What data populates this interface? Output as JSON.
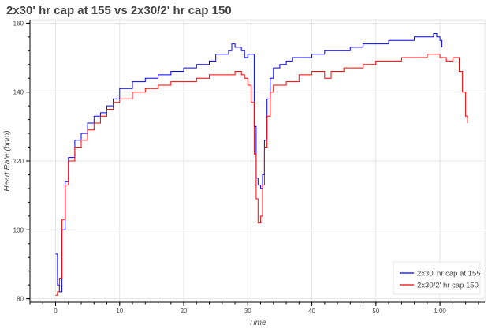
{
  "chart_data": {
    "type": "line",
    "title": "2x30' hr cap at 155 vs 2x30/2' hr cap 150",
    "xlabel": "Time",
    "ylabel": "Heart Rate (bpm)",
    "xlim": [
      -4,
      67
    ],
    "ylim": [
      79,
      161
    ],
    "x_ticks": [
      0,
      10,
      20,
      30,
      40,
      50,
      60
    ],
    "x_tick_labels": [
      "0",
      "10",
      "20",
      "30",
      "40",
      "50",
      "1:00"
    ],
    "y_ticks": [
      80,
      100,
      120,
      140,
      160
    ],
    "y_tick_labels": [
      "80",
      "100",
      "120",
      "140",
      "160"
    ],
    "grid": true,
    "legend_position": "bottom-right",
    "series": [
      {
        "name": "2x30' hr cap at 155",
        "color": "#0000ff",
        "points": [
          [
            0,
            93
          ],
          [
            0.3,
            84
          ],
          [
            0.6,
            82
          ],
          [
            1.0,
            100
          ],
          [
            1.5,
            114
          ],
          [
            2.0,
            121
          ],
          [
            3,
            126
          ],
          [
            4,
            128
          ],
          [
            5,
            131
          ],
          [
            6,
            133
          ],
          [
            7,
            134
          ],
          [
            8,
            136
          ],
          [
            9,
            138
          ],
          [
            10,
            141
          ],
          [
            12,
            143
          ],
          [
            14,
            144
          ],
          [
            16,
            145
          ],
          [
            18,
            146
          ],
          [
            20,
            147
          ],
          [
            22,
            148
          ],
          [
            24,
            149
          ],
          [
            25,
            151
          ],
          [
            26,
            151
          ],
          [
            27,
            152
          ],
          [
            27.5,
            154
          ],
          [
            28,
            153
          ],
          [
            29,
            152
          ],
          [
            29.5,
            150
          ],
          [
            30,
            151
          ],
          [
            30.5,
            151
          ],
          [
            31,
            130
          ],
          [
            31.3,
            115
          ],
          [
            31.6,
            113
          ],
          [
            32,
            112
          ],
          [
            32.3,
            116
          ],
          [
            32.6,
            126
          ],
          [
            33,
            138
          ],
          [
            33.5,
            144
          ],
          [
            34,
            147
          ],
          [
            35,
            148
          ],
          [
            36,
            149
          ],
          [
            37,
            150
          ],
          [
            38,
            150
          ],
          [
            40,
            151
          ],
          [
            42,
            152
          ],
          [
            44,
            152
          ],
          [
            46,
            153
          ],
          [
            48,
            154
          ],
          [
            50,
            154
          ],
          [
            52,
            155
          ],
          [
            54,
            155
          ],
          [
            56,
            156
          ],
          [
            58,
            156
          ],
          [
            59,
            157
          ],
          [
            59.5,
            156
          ],
          [
            60,
            155
          ],
          [
            60.3,
            153
          ]
        ]
      },
      {
        "name": "2x30/2' hr cap 150",
        "color": "#ff0000",
        "points": [
          [
            0,
            81
          ],
          [
            0.3,
            82
          ],
          [
            0.6,
            86
          ],
          [
            1.0,
            103
          ],
          [
            1.5,
            113
          ],
          [
            2.0,
            120
          ],
          [
            3,
            124
          ],
          [
            4,
            126
          ],
          [
            5,
            129
          ],
          [
            6,
            131
          ],
          [
            7,
            133
          ],
          [
            8,
            135
          ],
          [
            9,
            137
          ],
          [
            10,
            138
          ],
          [
            12,
            140
          ],
          [
            14,
            141
          ],
          [
            16,
            142
          ],
          [
            18,
            143
          ],
          [
            20,
            143
          ],
          [
            22,
            144
          ],
          [
            24,
            145
          ],
          [
            26,
            145
          ],
          [
            28,
            146
          ],
          [
            29,
            145
          ],
          [
            29.5,
            144
          ],
          [
            30,
            142
          ],
          [
            30.5,
            137
          ],
          [
            31,
            122
          ],
          [
            31.3,
            109
          ],
          [
            31.6,
            102
          ],
          [
            32,
            104
          ],
          [
            32.3,
            113
          ],
          [
            32.6,
            124
          ],
          [
            33,
            133
          ],
          [
            33.5,
            140
          ],
          [
            34,
            142
          ],
          [
            36,
            143
          ],
          [
            38,
            145
          ],
          [
            40,
            146
          ],
          [
            41,
            146
          ],
          [
            42,
            144
          ],
          [
            43,
            146
          ],
          [
            45,
            147
          ],
          [
            48,
            148
          ],
          [
            50,
            149
          ],
          [
            52,
            149
          ],
          [
            54,
            150
          ],
          [
            56,
            150
          ],
          [
            58,
            151
          ],
          [
            60,
            150
          ],
          [
            61,
            149
          ],
          [
            62,
            150
          ],
          [
            63,
            146
          ],
          [
            63.5,
            140
          ],
          [
            64,
            133
          ],
          [
            64.3,
            131
          ]
        ]
      }
    ]
  }
}
